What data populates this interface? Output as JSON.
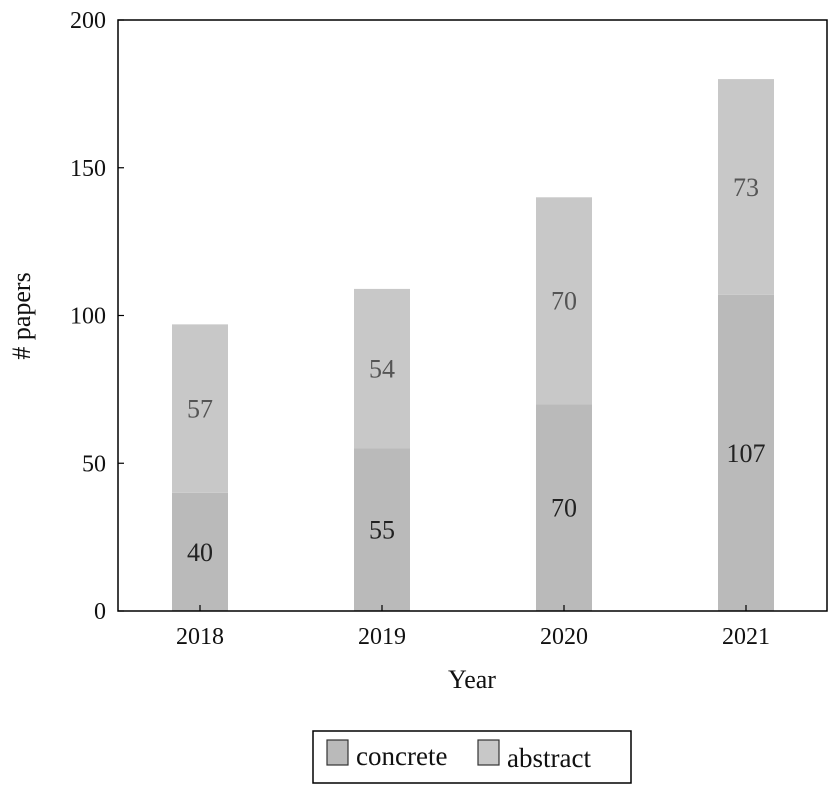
{
  "chart_data": {
    "type": "bar",
    "stacked": true,
    "categories": [
      "2018",
      "2019",
      "2020",
      "2021"
    ],
    "series": [
      {
        "name": "concrete",
        "values": [
          40,
          55,
          70,
          107
        ],
        "color": "#bababa",
        "label_color": "#222222"
      },
      {
        "name": "abstract",
        "values": [
          57,
          54,
          70,
          73
        ],
        "color": "#c8c8c8",
        "label_color": "#555555"
      }
    ],
    "xlabel": "Year",
    "ylabel": "# papers",
    "ylim": [
      0,
      200
    ],
    "yticks": [
      "0",
      "50",
      "100",
      "150",
      "200"
    ],
    "grid": false,
    "legend_position": "bottom-center"
  }
}
